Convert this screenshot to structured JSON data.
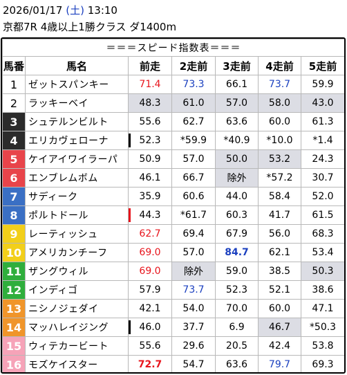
{
  "header": {
    "date": "2026/01/17",
    "weekday": "(土)",
    "time": "13:10",
    "race": "京都7R 4歳以上1勝クラス ダ1400m"
  },
  "table": {
    "title": "＝＝＝スピード指数表＝＝＝",
    "columns": [
      "馬番",
      "馬名",
      "前走",
      "2走前",
      "3走前",
      "4走前",
      "5走前"
    ],
    "rows": [
      {
        "no": "1",
        "name": "ゼットスパンキー",
        "cells": [
          "71.4",
          "73.3",
          "66.1",
          "73.7",
          "59.9"
        ],
        "styles": [
          "red",
          "blue",
          "",
          "blue",
          ""
        ],
        "shade": [
          0,
          0,
          0,
          0,
          0
        ],
        "mark": ""
      },
      {
        "no": "2",
        "name": "ラッキーベイ",
        "cells": [
          "48.3",
          "61.0",
          "57.0",
          "58.0",
          "43.0"
        ],
        "styles": [
          "",
          "",
          "",
          "",
          ""
        ],
        "shade": [
          1,
          1,
          1,
          1,
          1
        ],
        "mark": ""
      },
      {
        "no": "3",
        "name": "シュテルンビルト",
        "cells": [
          "55.6",
          "62.7",
          "63.6",
          "60.0",
          "61.3"
        ],
        "styles": [
          "",
          "",
          "",
          "",
          ""
        ],
        "shade": [
          0,
          0,
          0,
          0,
          0
        ],
        "mark": ""
      },
      {
        "no": "4",
        "name": "エリカヴェローナ",
        "cells": [
          "52.3",
          "*59.9",
          "*40.9",
          "*10.0",
          "*1.4"
        ],
        "styles": [
          "",
          "",
          "",
          "",
          ""
        ],
        "shade": [
          0,
          0,
          0,
          0,
          0
        ],
        "mark": "black"
      },
      {
        "no": "5",
        "name": "ケイアイワイラーパ",
        "cells": [
          "50.9",
          "57.0",
          "50.0",
          "53.2",
          "24.3"
        ],
        "styles": [
          "",
          "",
          "",
          "",
          ""
        ],
        "shade": [
          0,
          0,
          1,
          1,
          0
        ],
        "mark": ""
      },
      {
        "no": "6",
        "name": "エンブレムボム",
        "cells": [
          "46.1",
          "66.7",
          "除外",
          "*57.2",
          "30.7"
        ],
        "styles": [
          "",
          "",
          "",
          "",
          ""
        ],
        "shade": [
          0,
          0,
          1,
          0,
          0
        ],
        "mark": ""
      },
      {
        "no": "7",
        "name": "サディーク",
        "cells": [
          "35.9",
          "60.6",
          "44.0",
          "58.4",
          "52.0"
        ],
        "styles": [
          "",
          "",
          "",
          "",
          ""
        ],
        "shade": [
          0,
          0,
          0,
          0,
          0
        ],
        "mark": ""
      },
      {
        "no": "8",
        "name": "ポルトドール",
        "cells": [
          "44.3",
          "*61.7",
          "60.3",
          "41.7",
          "61.5"
        ],
        "styles": [
          "",
          "",
          "",
          "",
          ""
        ],
        "shade": [
          0,
          0,
          0,
          0,
          0
        ],
        "mark": "red"
      },
      {
        "no": "9",
        "name": "レーティッシュ",
        "cells": [
          "62.7",
          "69.4",
          "67.9",
          "56.0",
          "68.3"
        ],
        "styles": [
          "red",
          "",
          "",
          "",
          ""
        ],
        "shade": [
          0,
          0,
          0,
          0,
          0
        ],
        "mark": ""
      },
      {
        "no": "10",
        "name": "アメリカンチーフ",
        "cells": [
          "69.0",
          "57.0",
          "84.7",
          "62.1",
          "53.4"
        ],
        "styles": [
          "red",
          "",
          "bluebold",
          "",
          ""
        ],
        "shade": [
          0,
          0,
          0,
          0,
          0
        ],
        "mark": ""
      },
      {
        "no": "11",
        "name": "ザングウィル",
        "cells": [
          "69.0",
          "除外",
          "59.0",
          "38.5",
          "50.3"
        ],
        "styles": [
          "red",
          "",
          "",
          "",
          ""
        ],
        "shade": [
          0,
          1,
          0,
          0,
          1
        ],
        "mark": ""
      },
      {
        "no": "12",
        "name": "インディゴ",
        "cells": [
          "57.9",
          "73.7",
          "52.3",
          "52.1",
          "38.6"
        ],
        "styles": [
          "",
          "blue",
          "",
          "",
          ""
        ],
        "shade": [
          0,
          0,
          0,
          0,
          0
        ],
        "mark": ""
      },
      {
        "no": "13",
        "name": "ニシノジェダイ",
        "cells": [
          "42.1",
          "54.0",
          "70.0",
          "60.0",
          "47.1"
        ],
        "styles": [
          "",
          "",
          "",
          "",
          ""
        ],
        "shade": [
          0,
          0,
          0,
          0,
          0
        ],
        "mark": ""
      },
      {
        "no": "14",
        "name": "マッハレイジング",
        "cells": [
          "46.0",
          "37.7",
          "6.9",
          "46.7",
          "*50.3"
        ],
        "styles": [
          "",
          "",
          "",
          "",
          ""
        ],
        "shade": [
          0,
          0,
          0,
          1,
          0
        ],
        "mark": "black"
      },
      {
        "no": "15",
        "name": "ウィテカービート",
        "cells": [
          "55.6",
          "29.6",
          "20.5",
          "42.4",
          "53.8"
        ],
        "styles": [
          "",
          "",
          "",
          "",
          ""
        ],
        "shade": [
          0,
          0,
          0,
          0,
          0
        ],
        "mark": ""
      },
      {
        "no": "16",
        "name": "モズケイスター",
        "cells": [
          "72.7",
          "54.7",
          "63.6",
          "79.7",
          "69.3"
        ],
        "styles": [
          "redbold",
          "",
          "",
          "blue",
          ""
        ],
        "shade": [
          0,
          0,
          0,
          0,
          0
        ],
        "mark": ""
      }
    ],
    "num_colors": {
      "1": "#ffffff",
      "2": "#ffffff",
      "3": "#2b2b2b",
      "4": "#2b2b2b",
      "5": "#e8444a",
      "6": "#e8444a",
      "7": "#3a6fc4",
      "8": "#3a6fc4",
      "9": "#f2cf1a",
      "10": "#f2cf1a",
      "11": "#2fae3c",
      "12": "#2fae3c",
      "13": "#f0952a",
      "14": "#f0952a",
      "15": "#f6a3b8",
      "16": "#f6a3b8"
    }
  }
}
